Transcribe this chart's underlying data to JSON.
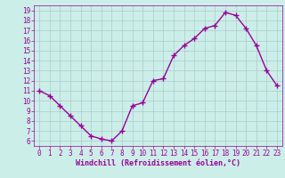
{
  "x": [
    0,
    1,
    2,
    3,
    4,
    5,
    6,
    7,
    8,
    9,
    10,
    11,
    12,
    13,
    14,
    15,
    16,
    17,
    18,
    19,
    20,
    21,
    22,
    23
  ],
  "y": [
    11,
    10.5,
    9.5,
    8.5,
    7.5,
    6.5,
    6.2,
    6.0,
    7.0,
    9.5,
    9.8,
    12.0,
    12.2,
    14.5,
    15.5,
    16.2,
    17.2,
    17.5,
    18.8,
    18.5,
    17.2,
    15.5,
    13.0,
    11.5
  ],
  "line_color": "#990099",
  "marker": "+",
  "markersize": 4,
  "linewidth": 1.0,
  "bg_color": "#cceee8",
  "grid_color": "#aacccc",
  "xlabel": "Windchill (Refroidissement éolien,°C)",
  "xlabel_color": "#990099",
  "tick_color": "#990099",
  "xlim": [
    -0.5,
    23.5
  ],
  "ylim": [
    5.5,
    19.5
  ],
  "yticks": [
    6,
    7,
    8,
    9,
    10,
    11,
    12,
    13,
    14,
    15,
    16,
    17,
    18,
    19
  ],
  "xticks": [
    0,
    1,
    2,
    3,
    4,
    5,
    6,
    7,
    8,
    9,
    10,
    11,
    12,
    13,
    14,
    15,
    16,
    17,
    18,
    19,
    20,
    21,
    22,
    23
  ],
  "tick_fontsize": 5.5,
  "xlabel_fontsize": 6.0
}
